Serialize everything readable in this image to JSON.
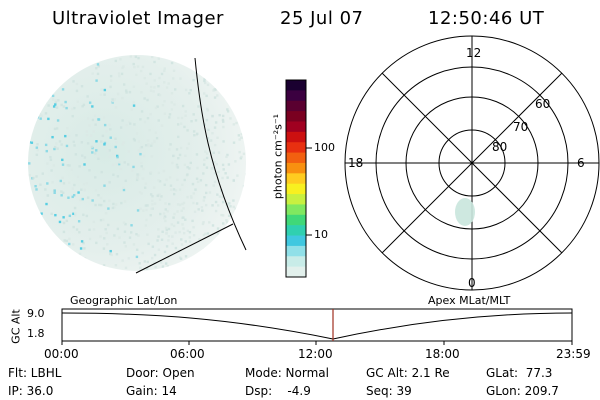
{
  "header": {
    "instrument": "Ultraviolet Imager",
    "date": "25 Jul 07",
    "time": "12:50:46 UT"
  },
  "colorbar": {
    "label": "photon cm⁻²s⁻¹",
    "ticks": [
      "100",
      "10"
    ],
    "colors": [
      "#1a0030",
      "#3b0040",
      "#5a0030",
      "#7a0020",
      "#a00020",
      "#cc1010",
      "#e83010",
      "#f26010",
      "#f89010",
      "#ffcc20",
      "#f8f020",
      "#c8f040",
      "#80e860",
      "#40d878",
      "#30d0b0",
      "#40c8e0",
      "#90e0e8",
      "#c8ece8",
      "#e2f0ec"
    ]
  },
  "polar_grid": {
    "mlt_labels": [
      "12",
      "18",
      "6",
      "0"
    ],
    "mlat_labels": [
      "60",
      "70",
      "80"
    ]
  },
  "timeline": {
    "left_label": "Geographic Lat/Lon",
    "right_label": "Apex MLat/MLT",
    "axis_title": "GC Alt",
    "y_ticks": [
      "9.0",
      "1.8"
    ],
    "x_ticks": [
      "00:00",
      "06:00",
      "12:00",
      "18:00",
      "23:59"
    ],
    "marker_color": "#a03020"
  },
  "info": {
    "filter": "Flt: LBHL",
    "door": "Door: Open",
    "mode": "Mode: Normal",
    "gc_alt": "GC Alt: 2.1 Re",
    "glat": "GLat:  77.3",
    "ip": "IP: 36.0",
    "gain": "Gain: 14",
    "dsp": "Dsp:    -4.9",
    "seq": "Seq: 39",
    "glon": "GLon: 209.7"
  }
}
